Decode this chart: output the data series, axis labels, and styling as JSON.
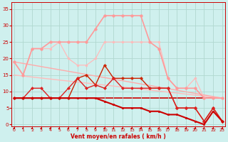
{
  "background_color": "#cff0ee",
  "grid_color": "#b0d8d0",
  "x_label": "Vent moyen/en rafales ( km/h )",
  "x_ticks": [
    0,
    1,
    2,
    3,
    4,
    5,
    6,
    7,
    8,
    9,
    10,
    11,
    12,
    13,
    14,
    15,
    16,
    17,
    18,
    19,
    20,
    21,
    22,
    23
  ],
  "y_ticks": [
    0,
    5,
    10,
    15,
    20,
    25,
    30,
    35
  ],
  "ylim": [
    -0.5,
    37
  ],
  "xlim": [
    -0.3,
    23.3
  ],
  "lines": [
    {
      "x": [
        0,
        1,
        2,
        3,
        4,
        5,
        6,
        7,
        8,
        9,
        10,
        11,
        12,
        13,
        14,
        15,
        16,
        17,
        18,
        19,
        20,
        21,
        22,
        23
      ],
      "y": [
        8,
        8,
        8,
        8,
        8,
        8,
        8,
        8,
        8,
        8,
        7,
        6,
        5,
        5,
        5,
        4,
        4,
        3,
        3,
        2,
        1,
        0,
        4,
        1
      ],
      "color": "#cc0000",
      "marker": "s",
      "markersize": 2.0,
      "linewidth": 1.5,
      "zorder": 6
    },
    {
      "x": [
        0,
        23
      ],
      "y": [
        8,
        8
      ],
      "color": "#cc0000",
      "marker": null,
      "markersize": 0,
      "linewidth": 1.2,
      "zorder": 1,
      "linestyle": "-"
    },
    {
      "x": [
        0,
        1,
        2,
        3,
        4,
        5,
        6,
        7,
        8,
        9,
        10,
        11,
        12,
        13,
        14,
        15,
        16,
        17,
        18,
        19,
        20,
        21,
        22,
        23
      ],
      "y": [
        8,
        8,
        11,
        11,
        8,
        8,
        11,
        14,
        11,
        12,
        11,
        14,
        11,
        11,
        11,
        11,
        11,
        11,
        5,
        5,
        5,
        1,
        5,
        1
      ],
      "color": "#dd2222",
      "marker": "D",
      "markersize": 2.0,
      "linewidth": 1.0,
      "zorder": 5
    },
    {
      "x": [
        0,
        1,
        2,
        3,
        4,
        5,
        6,
        7,
        8,
        9,
        10,
        11,
        12,
        13,
        14,
        15,
        16,
        17,
        18,
        19,
        20,
        21,
        22,
        23
      ],
      "y": [
        8,
        8,
        8,
        8,
        8,
        8,
        8,
        14,
        15,
        12,
        18,
        14,
        14,
        14,
        14,
        11,
        11,
        11,
        5,
        5,
        5,
        1,
        5,
        1
      ],
      "color": "#cc2200",
      "marker": "P",
      "markersize": 2.5,
      "linewidth": 1.0,
      "zorder": 4
    },
    {
      "x": [
        0,
        23
      ],
      "y": [
        19,
        8
      ],
      "color": "#ffaaaa",
      "marker": null,
      "markersize": 0,
      "linewidth": 1.0,
      "zorder": 2,
      "linestyle": "-"
    },
    {
      "x": [
        0,
        23
      ],
      "y": [
        15,
        8
      ],
      "color": "#ffbbbb",
      "marker": null,
      "markersize": 0,
      "linewidth": 1.0,
      "zorder": 2,
      "linestyle": "-"
    },
    {
      "x": [
        0,
        1,
        2,
        3,
        4,
        5,
        6,
        7,
        8,
        9,
        10,
        11,
        12,
        13,
        14,
        15,
        16,
        17,
        18,
        19,
        20,
        21,
        22,
        23
      ],
      "y": [
        19,
        15,
        23,
        23,
        25,
        25,
        25,
        25,
        25,
        29,
        33,
        33,
        33,
        33,
        33,
        25,
        23,
        14,
        11,
        11,
        11,
        8,
        8,
        8
      ],
      "color": "#ff9999",
      "marker": "o",
      "markersize": 2.5,
      "linewidth": 1.2,
      "zorder": 3
    },
    {
      "x": [
        0,
        1,
        2,
        3,
        4,
        5,
        6,
        7,
        8,
        9,
        10,
        11,
        12,
        13,
        14,
        15,
        16,
        17,
        18,
        19,
        20,
        21,
        22,
        23
      ],
      "y": [
        19,
        15,
        23,
        23,
        23,
        25,
        20,
        18,
        18,
        20,
        25,
        25,
        25,
        25,
        25,
        25,
        25,
        14,
        11,
        11,
        14,
        8,
        8,
        8
      ],
      "color": "#ffbbbb",
      "marker": "o",
      "markersize": 2.0,
      "linewidth": 0.9,
      "zorder": 2
    }
  ],
  "tick_color": "#cc0000",
  "label_color": "#cc0000",
  "spine_color": "#cc0000"
}
